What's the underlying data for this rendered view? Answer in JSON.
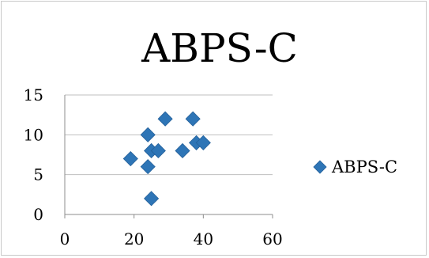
{
  "chart_data": {
    "type": "scatter",
    "title": "ABPS-C",
    "xlabel": "",
    "ylabel": "",
    "xlim": [
      0,
      60
    ],
    "ylim": [
      0,
      15
    ],
    "x_ticks": [
      0,
      20,
      40,
      60
    ],
    "y_ticks": [
      0,
      5,
      10,
      15
    ],
    "grid": "horizontal",
    "legend_position": "right",
    "series": [
      {
        "name": "ABPS-C",
        "color": "#2e75b6",
        "marker": "diamond",
        "points": [
          {
            "x": 19,
            "y": 7
          },
          {
            "x": 24,
            "y": 6
          },
          {
            "x": 24,
            "y": 10
          },
          {
            "x": 25,
            "y": 8
          },
          {
            "x": 25,
            "y": 2
          },
          {
            "x": 27,
            "y": 8
          },
          {
            "x": 29,
            "y": 12
          },
          {
            "x": 34,
            "y": 8
          },
          {
            "x": 37,
            "y": 12
          },
          {
            "x": 38,
            "y": 9
          },
          {
            "x": 40,
            "y": 9
          }
        ]
      }
    ]
  }
}
